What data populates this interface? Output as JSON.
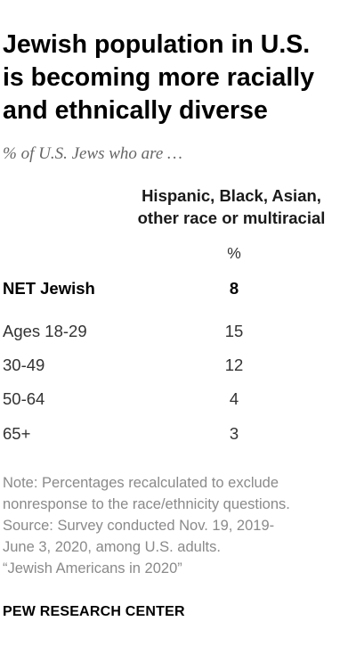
{
  "title_lines": [
    "Jewish population in U.S.",
    "is becoming more racially",
    "and ethnically diverse"
  ],
  "subtitle": "% of U.S. Jews who are …",
  "column_header_lines": [
    "Hispanic, Black, Asian,",
    "other race or multiracial"
  ],
  "unit_label": "%",
  "chart_data": {
    "type": "table",
    "columns": [
      "Hispanic, Black, Asian, other race or multiracial"
    ],
    "rows": [
      {
        "label": "NET Jewish",
        "value": "8",
        "bold": true
      },
      {
        "label": "Ages 18-29",
        "value": "15"
      },
      {
        "label": "30-49",
        "value": "12"
      },
      {
        "label": "50-64",
        "value": "4"
      },
      {
        "label": "65+",
        "value": "3"
      }
    ]
  },
  "note_lines": [
    "Note: Percentages recalculated to exclude",
    "nonresponse to the race/ethnicity questions.",
    "Source: Survey conducted Nov. 19, 2019-",
    "June 3, 2020, among U.S. adults.",
    "“Jewish Americans in 2020”"
  ],
  "footer": "PEW RESEARCH CENTER"
}
